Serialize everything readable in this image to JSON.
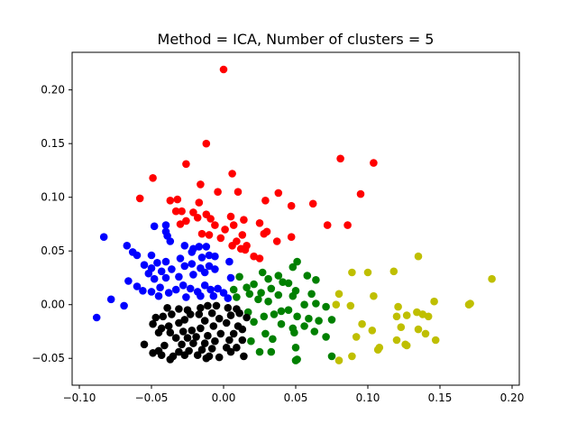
{
  "chart_data": {
    "type": "scatter",
    "title": "Method = ICA, Number of clusters = 5",
    "xlabel": "",
    "ylabel": "",
    "xlim": [
      -0.105,
      0.205
    ],
    "ylim": [
      -0.075,
      0.235
    ],
    "grid": false,
    "x_ticks": [
      "−0.10",
      "−0.05",
      "0.00",
      "0.05",
      "0.10",
      "0.15",
      "0.20"
    ],
    "x_tick_values": [
      -0.1,
      -0.05,
      0.0,
      0.05,
      0.1,
      0.15,
      0.2
    ],
    "y_ticks": [
      "−0.05",
      "0.00",
      "0.05",
      "0.10",
      "0.15",
      "0.20"
    ],
    "y_tick_values": [
      -0.05,
      0.0,
      0.05,
      0.1,
      0.15,
      0.2
    ],
    "series": [
      {
        "color": "#ff0000",
        "points": [
          [
            0.0,
            0.219
          ],
          [
            -0.012,
            0.15
          ],
          [
            0.081,
            0.136
          ],
          [
            0.104,
            0.132
          ],
          [
            -0.026,
            0.131
          ],
          [
            0.006,
            0.122
          ],
          [
            -0.049,
            0.118
          ],
          [
            -0.016,
            0.112
          ],
          [
            -0.004,
            0.105
          ],
          [
            0.01,
            0.105
          ],
          [
            0.038,
            0.104
          ],
          [
            0.095,
            0.103
          ],
          [
            -0.058,
            0.099
          ],
          [
            0.029,
            0.097
          ],
          [
            -0.037,
            0.097
          ],
          [
            -0.032,
            0.098
          ],
          [
            -0.017,
            0.095
          ],
          [
            0.062,
            0.094
          ],
          [
            0.047,
            0.092
          ],
          [
            -0.029,
            0.087
          ],
          [
            -0.021,
            0.086
          ],
          [
            -0.033,
            0.087
          ],
          [
            -0.012,
            0.084
          ],
          [
            -0.018,
            0.081
          ],
          [
            0.005,
            0.082
          ],
          [
            -0.009,
            0.08
          ],
          [
            0.014,
            0.079
          ],
          [
            -0.026,
            0.078
          ],
          [
            -0.03,
            0.075
          ],
          [
            0.025,
            0.076
          ],
          [
            0.072,
            0.074
          ],
          [
            0.086,
            0.074
          ],
          [
            -0.006,
            0.074
          ],
          [
            0.007,
            0.074
          ],
          [
            0.001,
            0.07
          ],
          [
            -0.015,
            0.066
          ],
          [
            0.028,
            0.066
          ],
          [
            0.03,
            0.068
          ],
          [
            0.013,
            0.065
          ],
          [
            -0.01,
            0.065
          ],
          [
            0.047,
            0.063
          ],
          [
            -0.002,
            0.062
          ],
          [
            0.009,
            0.059
          ],
          [
            0.037,
            0.059
          ],
          [
            0.016,
            0.055
          ],
          [
            0.006,
            0.055
          ],
          [
            0.015,
            0.051
          ],
          [
            0.021,
            0.045
          ],
          [
            0.025,
            0.043
          ],
          [
            0.012,
            0.052
          ]
        ]
      },
      {
        "color": "#0000ff",
        "points": [
          [
            -0.083,
            0.063
          ],
          [
            -0.048,
            0.073
          ],
          [
            -0.04,
            0.074
          ],
          [
            -0.04,
            0.068
          ],
          [
            -0.039,
            0.064
          ],
          [
            -0.067,
            0.055
          ],
          [
            -0.063,
            0.049
          ],
          [
            -0.06,
            0.046
          ],
          [
            -0.05,
            0.046
          ],
          [
            -0.037,
            0.059
          ],
          [
            -0.027,
            0.055
          ],
          [
            -0.021,
            0.052
          ],
          [
            -0.017,
            0.054
          ],
          [
            -0.012,
            0.054
          ],
          [
            -0.022,
            0.049
          ],
          [
            -0.015,
            0.044
          ],
          [
            -0.01,
            0.046
          ],
          [
            -0.006,
            0.045
          ],
          [
            0.004,
            0.04
          ],
          [
            -0.03,
            0.043
          ],
          [
            -0.04,
            0.04
          ],
          [
            -0.046,
            0.039
          ],
          [
            -0.055,
            0.037
          ],
          [
            -0.05,
            0.034
          ],
          [
            -0.043,
            0.031
          ],
          [
            -0.036,
            0.033
          ],
          [
            -0.027,
            0.036
          ],
          [
            -0.022,
            0.038
          ],
          [
            -0.016,
            0.034
          ],
          [
            -0.01,
            0.036
          ],
          [
            -0.006,
            0.033
          ],
          [
            -0.013,
            0.03
          ],
          [
            -0.021,
            0.028
          ],
          [
            -0.031,
            0.026
          ],
          [
            -0.04,
            0.025
          ],
          [
            -0.048,
            0.024
          ],
          [
            -0.066,
            0.022
          ],
          [
            -0.06,
            0.017
          ],
          [
            -0.056,
            0.013
          ],
          [
            -0.05,
            0.012
          ],
          [
            -0.044,
            0.016
          ],
          [
            -0.038,
            0.011
          ],
          [
            -0.033,
            0.014
          ],
          [
            -0.028,
            0.018
          ],
          [
            -0.023,
            0.015
          ],
          [
            -0.018,
            0.012
          ],
          [
            -0.013,
            0.018
          ],
          [
            -0.009,
            0.014
          ],
          [
            -0.004,
            0.015
          ],
          [
            0.0,
            0.011
          ],
          [
            0.003,
            0.006
          ],
          [
            -0.007,
            0.008
          ],
          [
            -0.016,
            0.008
          ],
          [
            -0.026,
            0.007
          ],
          [
            -0.045,
            0.008
          ],
          [
            -0.078,
            0.005
          ],
          [
            -0.069,
            -0.001
          ],
          [
            -0.088,
            -0.012
          ],
          [
            -0.052,
            0.029
          ],
          [
            0.005,
            0.025
          ]
        ]
      },
      {
        "color": "#008000",
        "points": [
          [
            0.051,
            0.04
          ],
          [
            0.048,
            0.035
          ],
          [
            0.027,
            0.03
          ],
          [
            0.038,
            0.027
          ],
          [
            0.011,
            0.026
          ],
          [
            0.031,
            0.024
          ],
          [
            0.058,
            0.027
          ],
          [
            0.064,
            0.023
          ],
          [
            0.041,
            0.021
          ],
          [
            0.045,
            0.02
          ],
          [
            0.021,
            0.019
          ],
          [
            0.016,
            0.016
          ],
          [
            0.007,
            0.014
          ],
          [
            0.033,
            0.015
          ],
          [
            0.05,
            0.013
          ],
          [
            0.026,
            0.011
          ],
          [
            0.018,
            0.01
          ],
          [
            0.038,
            0.009
          ],
          [
            0.061,
            0.01
          ],
          [
            0.048,
            0.008
          ],
          [
            0.009,
            0.007
          ],
          [
            0.024,
            0.005
          ],
          [
            0.031,
            0.003
          ],
          [
            0.064,
            0.001
          ],
          [
            0.056,
            0.0
          ],
          [
            0.071,
            -0.002
          ],
          [
            0.045,
            -0.005
          ],
          [
            0.04,
            -0.006
          ],
          [
            0.035,
            -0.009
          ],
          [
            0.017,
            -0.007
          ],
          [
            0.028,
            -0.011
          ],
          [
            0.051,
            -0.011
          ],
          [
            0.059,
            -0.013
          ],
          [
            0.066,
            -0.015
          ],
          [
            0.075,
            -0.014
          ],
          [
            0.021,
            -0.016
          ],
          [
            0.04,
            -0.018
          ],
          [
            0.056,
            -0.02
          ],
          [
            0.048,
            -0.022
          ],
          [
            0.063,
            -0.025
          ],
          [
            0.029,
            -0.027
          ],
          [
            0.049,
            -0.026
          ],
          [
            0.071,
            -0.03
          ],
          [
            0.034,
            -0.032
          ],
          [
            0.05,
            -0.04
          ],
          [
            0.033,
            -0.044
          ],
          [
            0.025,
            -0.044
          ],
          [
            0.075,
            -0.048
          ],
          [
            0.051,
            -0.051
          ],
          [
            0.05,
            -0.052
          ],
          [
            0.019,
            -0.034
          ]
        ]
      },
      {
        "color": "#bfbf00",
        "points": [
          [
            0.135,
            0.045
          ],
          [
            0.186,
            0.024
          ],
          [
            0.089,
            0.03
          ],
          [
            0.1,
            0.03
          ],
          [
            0.118,
            0.031
          ],
          [
            0.08,
            0.01
          ],
          [
            0.104,
            0.008
          ],
          [
            0.146,
            0.003
          ],
          [
            0.17,
            0.0
          ],
          [
            0.171,
            0.001
          ],
          [
            0.078,
            0.0
          ],
          [
            0.088,
            -0.001
          ],
          [
            0.121,
            -0.002
          ],
          [
            0.134,
            -0.007
          ],
          [
            0.138,
            -0.009
          ],
          [
            0.127,
            -0.01
          ],
          [
            0.142,
            -0.011
          ],
          [
            0.12,
            -0.011
          ],
          [
            0.096,
            -0.018
          ],
          [
            0.123,
            -0.021
          ],
          [
            0.135,
            -0.023
          ],
          [
            0.14,
            -0.027
          ],
          [
            0.092,
            -0.03
          ],
          [
            0.103,
            -0.024
          ],
          [
            0.12,
            -0.033
          ],
          [
            0.147,
            -0.033
          ],
          [
            0.126,
            -0.037
          ],
          [
            0.127,
            -0.038
          ],
          [
            0.108,
            -0.04
          ],
          [
            0.107,
            -0.042
          ],
          [
            0.089,
            -0.048
          ],
          [
            0.08,
            -0.052
          ]
        ]
      },
      {
        "color": "#000000",
        "points": [
          [
            -0.005,
            -0.001
          ],
          [
            -0.011,
            -0.001
          ],
          [
            -0.016,
            -0.003
          ],
          [
            -0.025,
            -0.005
          ],
          [
            -0.031,
            -0.004
          ],
          [
            -0.039,
            -0.003
          ],
          [
            0.003,
            -0.003
          ],
          [
            0.009,
            -0.004
          ],
          [
            -0.008,
            -0.008
          ],
          [
            -0.017,
            -0.009
          ],
          [
            -0.023,
            -0.009
          ],
          [
            -0.036,
            -0.009
          ],
          [
            -0.042,
            -0.011
          ],
          [
            -0.047,
            -0.012
          ],
          [
            -0.049,
            -0.018
          ],
          [
            0.005,
            -0.01
          ],
          [
            0.011,
            -0.008
          ],
          [
            0.016,
            -0.012
          ],
          [
            -0.003,
            -0.013
          ],
          [
            -0.013,
            -0.015
          ],
          [
            -0.027,
            -0.014
          ],
          [
            -0.031,
            -0.017
          ],
          [
            -0.038,
            -0.02
          ],
          [
            -0.043,
            -0.022
          ],
          [
            0.002,
            -0.017
          ],
          [
            0.01,
            -0.02
          ],
          [
            0.013,
            -0.023
          ],
          [
            -0.007,
            -0.02
          ],
          [
            -0.016,
            -0.022
          ],
          [
            -0.022,
            -0.024
          ],
          [
            -0.028,
            -0.025
          ],
          [
            -0.037,
            -0.026
          ],
          [
            -0.045,
            -0.026
          ],
          [
            0.007,
            -0.027
          ],
          [
            -0.002,
            -0.027
          ],
          [
            -0.011,
            -0.029
          ],
          [
            -0.019,
            -0.03
          ],
          [
            -0.025,
            -0.031
          ],
          [
            -0.033,
            -0.031
          ],
          [
            0.013,
            -0.033
          ],
          [
            0.004,
            -0.033
          ],
          [
            -0.006,
            -0.034
          ],
          [
            -0.013,
            -0.036
          ],
          [
            -0.021,
            -0.036
          ],
          [
            -0.029,
            -0.037
          ],
          [
            -0.055,
            -0.037
          ],
          [
            -0.041,
            -0.038
          ],
          [
            0.009,
            -0.04
          ],
          [
            0.002,
            -0.04
          ],
          [
            -0.008,
            -0.041
          ],
          [
            -0.015,
            -0.042
          ],
          [
            -0.024,
            -0.043
          ],
          [
            -0.031,
            -0.044
          ],
          [
            -0.045,
            -0.043
          ],
          [
            -0.049,
            -0.045
          ],
          [
            -0.043,
            -0.047
          ],
          [
            -0.035,
            -0.048
          ],
          [
            -0.027,
            -0.047
          ],
          [
            -0.018,
            -0.047
          ],
          [
            -0.01,
            -0.048
          ],
          [
            -0.003,
            -0.049
          ],
          [
            -0.012,
            -0.05
          ],
          [
            0.014,
            -0.048
          ],
          [
            -0.037,
            -0.051
          ],
          [
            0.005,
            -0.044
          ]
        ]
      }
    ]
  }
}
